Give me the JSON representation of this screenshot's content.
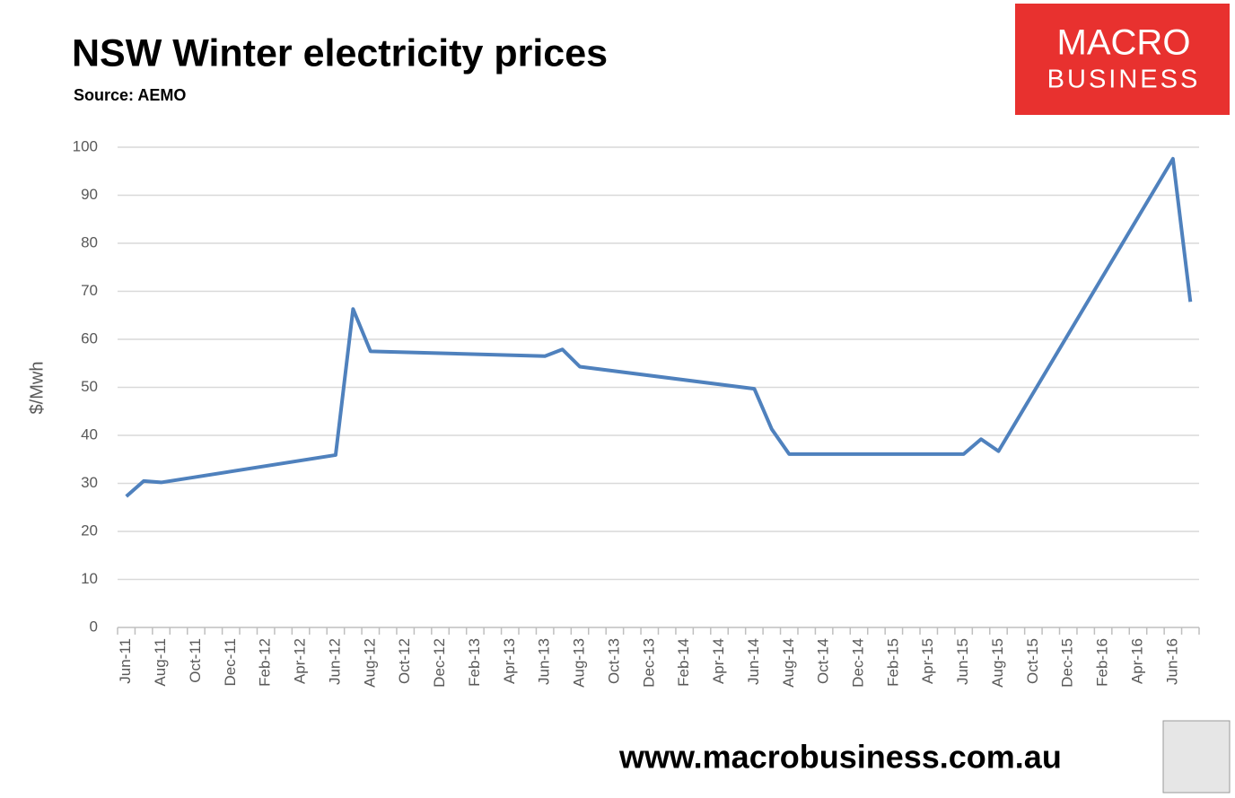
{
  "chart_data": {
    "type": "line",
    "title": "NSW Winter electricity prices",
    "subtitle": "Source: AEMO",
    "y_label": "$/Mwh",
    "logo": [
      "MACRO",
      "BUSINESS"
    ],
    "annotations": [
      "www.macrobusiness.com.au"
    ],
    "x": [
      "2011-06",
      "2011-07",
      "2011-08",
      "2012-06",
      "2012-07",
      "2012-08",
      "2013-06",
      "2013-07",
      "2013-08",
      "2014-06",
      "2014-07",
      "2014-08",
      "2015-06",
      "2015-07",
      "2015-08",
      "2016-06",
      "2016-07"
    ],
    "series": [
      {
        "name": "NSW",
        "color": "#4f81bd",
        "values": [
          27.3,
          30.5,
          30.2,
          35.9,
          66.3,
          57.5,
          56.5,
          57.9,
          54.3,
          49.7,
          41.3,
          36.1,
          36.1,
          39.2,
          36.7,
          97.6,
          67.8
        ]
      }
    ],
    "xlim": [
      "2011-06",
      "2016-07"
    ],
    "xticks": [
      {
        "value": "2011-06",
        "label": "Jun-11"
      },
      {
        "value": "2011-08",
        "label": "Aug-11"
      },
      {
        "value": "2011-10",
        "label": "Oct-11"
      },
      {
        "value": "2011-12",
        "label": "Dec-11"
      },
      {
        "value": "2012-02",
        "label": "Feb-12"
      },
      {
        "value": "2012-04",
        "label": "Apr-12"
      },
      {
        "value": "2012-06",
        "label": "Jun-12"
      },
      {
        "value": "2012-08",
        "label": "Aug-12"
      },
      {
        "value": "2012-10",
        "label": "Oct-12"
      },
      {
        "value": "2012-12",
        "label": "Dec-12"
      },
      {
        "value": "2013-02",
        "label": "Feb-13"
      },
      {
        "value": "2013-04",
        "label": "Apr-13"
      },
      {
        "value": "2013-06",
        "label": "Jun-13"
      },
      {
        "value": "2013-08",
        "label": "Aug-13"
      },
      {
        "value": "2013-10",
        "label": "Oct-13"
      },
      {
        "value": "2013-12",
        "label": "Dec-13"
      },
      {
        "value": "2014-02",
        "label": "Feb-14"
      },
      {
        "value": "2014-04",
        "label": "Apr-14"
      },
      {
        "value": "2014-06",
        "label": "Jun-14"
      },
      {
        "value": "2014-08",
        "label": "Aug-14"
      },
      {
        "value": "2014-10",
        "label": "Oct-14"
      },
      {
        "value": "2014-12",
        "label": "Dec-14"
      },
      {
        "value": "2015-02",
        "label": "Feb-15"
      },
      {
        "value": "2015-04",
        "label": "Apr-15"
      },
      {
        "value": "2015-06",
        "label": "Jun-15"
      },
      {
        "value": "2015-08",
        "label": "Aug-15"
      },
      {
        "value": "2015-10",
        "label": "Oct-15"
      },
      {
        "value": "2015-12",
        "label": "Dec-15"
      },
      {
        "value": "2016-02",
        "label": "Feb-16"
      },
      {
        "value": "2016-04",
        "label": "Apr-16"
      },
      {
        "value": "2016-06",
        "label": "Jun-16"
      }
    ],
    "ylim": [
      0,
      100
    ],
    "yticks": [
      0,
      10,
      20,
      30,
      40,
      50,
      60,
      70,
      80,
      90,
      100
    ],
    "grid": true
  }
}
